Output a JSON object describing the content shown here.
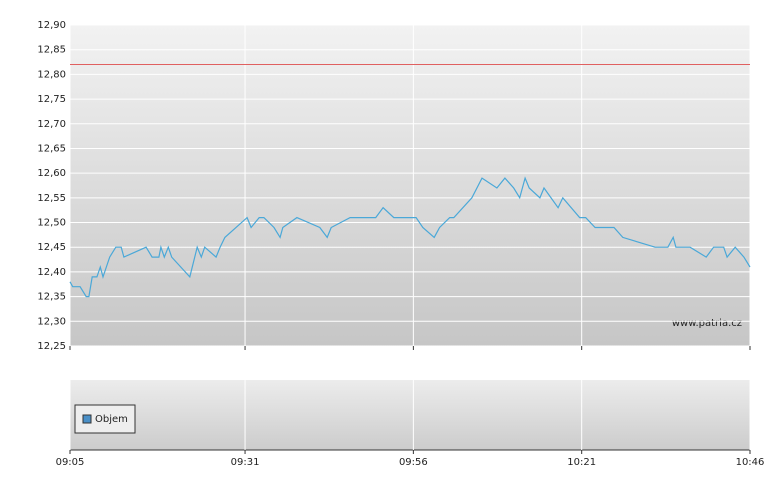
{
  "chart_data": {
    "type": "line",
    "watermark": "www.patria.cz",
    "volume_legend": "Objem",
    "volume_legend_color": "#4a90c8",
    "reference_line": 12.82,
    "reference_color": "#e06060",
    "grid": true,
    "xlim": [
      5,
      106
    ],
    "xticks": [
      {
        "value": 5,
        "label": "09:05"
      },
      {
        "value": 31,
        "label": "09:31"
      },
      {
        "value": 56,
        "label": "09:56"
      },
      {
        "value": 81,
        "label": "10:21"
      },
      {
        "value": 106,
        "label": "10:46"
      }
    ],
    "ylim": [
      12.25,
      12.9
    ],
    "yticks": [
      {
        "value": 12.25,
        "label": "12,25"
      },
      {
        "value": 12.3,
        "label": "12,30"
      },
      {
        "value": 12.35,
        "label": "12,35"
      },
      {
        "value": 12.4,
        "label": "12,40"
      },
      {
        "value": 12.45,
        "label": "12,45"
      },
      {
        "value": 12.5,
        "label": "12,50"
      },
      {
        "value": 12.55,
        "label": "12,55"
      },
      {
        "value": 12.6,
        "label": "12,60"
      },
      {
        "value": 12.65,
        "label": "12,65"
      },
      {
        "value": 12.7,
        "label": "12,70"
      },
      {
        "value": 12.75,
        "label": "12,75"
      },
      {
        "value": 12.8,
        "label": "12,80"
      },
      {
        "value": 12.85,
        "label": "12,85"
      },
      {
        "value": 12.9,
        "label": "12,90"
      }
    ],
    "series": [
      {
        "color": "#4aa8d8",
        "x": [
          5,
          5.4,
          6.5,
          7.4,
          7.8,
          8.3,
          9,
          9.5,
          9.9,
          10.9,
          11.8,
          12.6,
          13,
          16.3,
          17.2,
          18.2,
          18.5,
          19,
          19.6,
          20.1,
          22.8,
          23.9,
          24.5,
          25,
          26.7,
          27.3,
          28,
          31.3,
          31.9,
          33.1,
          33.8,
          35.3,
          36.2,
          36.6,
          38.7,
          42.1,
          43.2,
          43.8,
          46.6,
          50.4,
          51.5,
          53.1,
          56.4,
          57.4,
          59.1,
          59.9,
          61.4,
          62,
          64.7,
          66.2,
          68.4,
          69.6,
          70.9,
          71.8,
          72.6,
          73.2,
          74.8,
          75.4,
          77.5,
          78.2,
          80.7,
          81.6,
          83,
          85.8,
          87.1,
          91.9,
          93.8,
          94.6,
          95,
          97.1,
          99.5,
          100.6,
          102.1,
          102.6,
          103.8,
          105.1,
          106
        ],
        "values": [
          12.38,
          12.37,
          12.37,
          12.35,
          12.35,
          12.39,
          12.39,
          12.41,
          12.39,
          12.43,
          12.45,
          12.45,
          12.43,
          12.45,
          12.43,
          12.43,
          12.45,
          12.43,
          12.45,
          12.43,
          12.39,
          12.45,
          12.43,
          12.45,
          12.43,
          12.45,
          12.47,
          12.51,
          12.49,
          12.51,
          12.51,
          12.49,
          12.47,
          12.49,
          12.51,
          12.49,
          12.47,
          12.49,
          12.51,
          12.51,
          12.53,
          12.51,
          12.51,
          12.49,
          12.47,
          12.49,
          12.51,
          12.51,
          12.55,
          12.59,
          12.57,
          12.59,
          12.57,
          12.55,
          12.59,
          12.57,
          12.55,
          12.57,
          12.53,
          12.55,
          12.51,
          12.51,
          12.49,
          12.49,
          12.47,
          12.45,
          12.45,
          12.47,
          12.45,
          12.45,
          12.43,
          12.45,
          12.45,
          12.43,
          12.45,
          12.43,
          12.41
        ]
      }
    ]
  }
}
